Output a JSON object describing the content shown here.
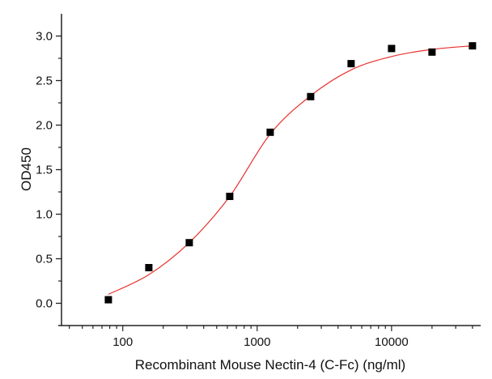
{
  "chart_data": {
    "type": "scatter",
    "title": "",
    "xlabel": "Recombinant Mouse Nectin-4 (C-Fc) (ng/ml)",
    "ylabel": "OD450",
    "xscale": "log",
    "xlim": [
      35,
      45400
    ],
    "ylim": [
      -0.25,
      3.25
    ],
    "grid": false,
    "x_ticks": [
      {
        "value": 100,
        "label": "100"
      },
      {
        "value": 1000,
        "label": "1000"
      },
      {
        "value": 10000,
        "label": "10000"
      }
    ],
    "y_ticks": [
      {
        "value": 0,
        "label": "0.0"
      },
      {
        "value": 0.5,
        "label": "0.5"
      },
      {
        "value": 1,
        "label": "1.0"
      },
      {
        "value": 1.5,
        "label": "1.5"
      },
      {
        "value": 2,
        "label": "2.0"
      },
      {
        "value": 2.5,
        "label": "2.5"
      },
      {
        "value": 3,
        "label": "3.0"
      }
    ],
    "series": [
      {
        "marker": "square",
        "color": "#000000",
        "x": [
          78.125,
          156.25,
          312.5,
          625,
          1250,
          2500,
          5000,
          10000,
          20000,
          40000
        ],
        "y": [
          0.04,
          0.4,
          0.68,
          1.2,
          1.92,
          2.32,
          2.69,
          2.86,
          2.82,
          2.89
        ]
      },
      {
        "type": "line",
        "role": "fit",
        "color": "#e8302c",
        "x": [
          78,
          156,
          312,
          625,
          1250,
          2500,
          5000,
          10000,
          20000,
          40000
        ],
        "y": [
          0.1,
          0.32,
          0.68,
          1.2,
          1.9,
          2.33,
          2.62,
          2.77,
          2.85,
          2.89
        ]
      }
    ]
  }
}
